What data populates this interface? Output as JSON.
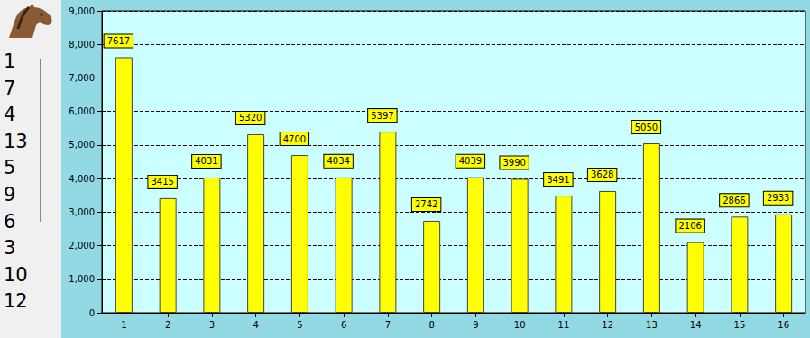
{
  "chart_data": {
    "type": "bar",
    "categories": [
      "1",
      "2",
      "3",
      "4",
      "5",
      "6",
      "7",
      "8",
      "9",
      "10",
      "11",
      "12",
      "13",
      "14",
      "15",
      "16"
    ],
    "values": [
      7617,
      3415,
      4031,
      5320,
      4700,
      4034,
      5397,
      2742,
      4039,
      3990,
      3491,
      3628,
      5050,
      2106,
      2866,
      2933
    ],
    "color": "#ffff00",
    "ylim": [
      0,
      9000
    ],
    "yticks": [
      0,
      1000,
      2000,
      3000,
      4000,
      5000,
      6000,
      7000,
      8000,
      9000
    ],
    "grid": true,
    "data_labels": true
  },
  "ranking": [
    1,
    7,
    4,
    13,
    5,
    9,
    6,
    3,
    10,
    12
  ]
}
